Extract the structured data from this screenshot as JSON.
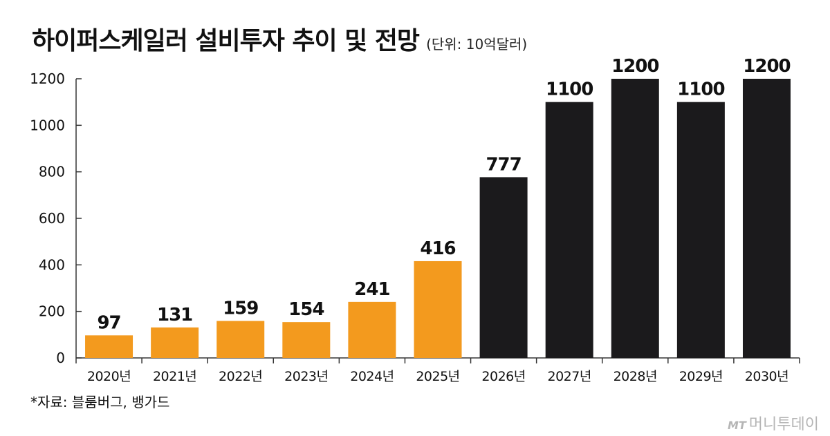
{
  "header": {
    "title": "하이퍼스케일러 설비투자 추이 및 전망",
    "unit": "(단위: 10억달러)"
  },
  "colors": {
    "actual": "#f39a1e",
    "forecast": "#1b1a1c",
    "axis": "#333333",
    "text": "#111111"
  },
  "chart_data": {
    "type": "bar",
    "title": "하이퍼스케일러 설비투자 추이 및 전망",
    "xlabel": "",
    "ylabel": "",
    "categories": [
      "2020년",
      "2021년",
      "2022년",
      "2023년",
      "2024년",
      "2025년",
      "2026년",
      "2027년",
      "2028년",
      "2029년",
      "2030년"
    ],
    "values": [
      97,
      131,
      159,
      154,
      241,
      416,
      777,
      1100,
      1200,
      1100,
      1200
    ],
    "data_labels": [
      "97",
      "131",
      "159",
      "154",
      "241",
      "416",
      "777",
      "1100",
      "1200",
      "1100",
      "1200"
    ],
    "bar_colors": [
      "#f39a1e",
      "#f39a1e",
      "#f39a1e",
      "#f39a1e",
      "#f39a1e",
      "#f39a1e",
      "#1b1a1c",
      "#1b1a1c",
      "#1b1a1c",
      "#1b1a1c",
      "#1b1a1c"
    ],
    "yticks": [
      0,
      200,
      400,
      600,
      800,
      1000,
      1200
    ],
    "ylim": [
      0,
      1200
    ],
    "grid": false,
    "legend": "none"
  },
  "footer": {
    "source": "*자료: 블룸버그, 뱅가드",
    "watermark_logo": "MT",
    "watermark_text": "머니투데이"
  }
}
